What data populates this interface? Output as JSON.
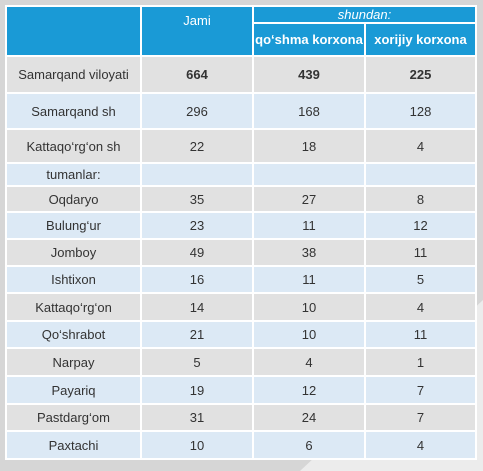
{
  "table": {
    "header": {
      "jami": "Jami",
      "shundan": "shundan:",
      "qoshma": "qo‘shma korxona",
      "xorijiy": "xorijiy korxona"
    },
    "rows": [
      {
        "label": "Samarqand viloyati",
        "values": [
          664,
          439,
          225
        ]
      },
      {
        "label": "Samarqand sh",
        "values": [
          296,
          168,
          128
        ]
      },
      {
        "label": "Kattaqo‘rg‘on sh",
        "values": [
          22,
          18,
          4
        ]
      },
      {
        "label": "tumanlar:"
      },
      {
        "label": "Oqdaryo",
        "values": [
          35,
          27,
          8
        ]
      },
      {
        "label": "Bulung‘ur",
        "values": [
          23,
          11,
          12
        ]
      },
      {
        "label": "Jomboy",
        "values": [
          49,
          38,
          11
        ]
      },
      {
        "label": "Ishtixon",
        "values": [
          16,
          11,
          5
        ]
      },
      {
        "label": "Kattaqo‘rg‘on",
        "values": [
          14,
          10,
          4
        ]
      },
      {
        "label": "Qo‘shrabot",
        "values": [
          21,
          10,
          11
        ]
      },
      {
        "label": "Narpay",
        "values": [
          5,
          4,
          1
        ]
      },
      {
        "label": "Payariq",
        "values": [
          19,
          12,
          7
        ]
      },
      {
        "label": "Pastdarg‘om",
        "values": [
          31,
          24,
          7
        ]
      },
      {
        "label": "Paxtachi",
        "values": [
          10,
          6,
          4
        ]
      }
    ]
  }
}
